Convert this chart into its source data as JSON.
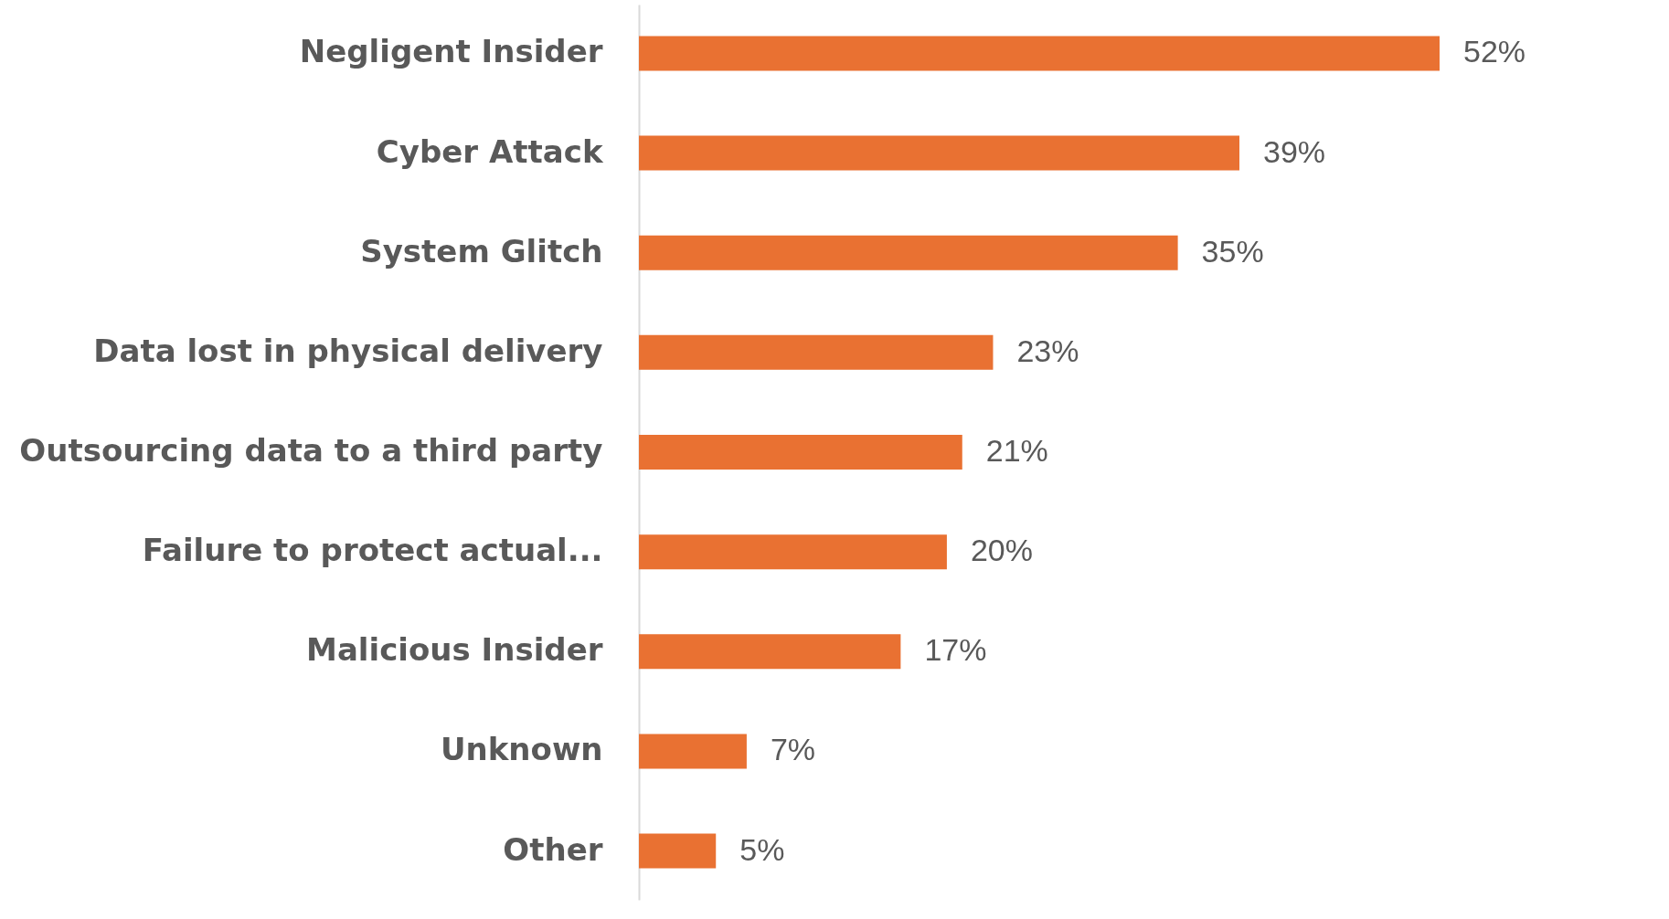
{
  "chart_data": {
    "type": "bar",
    "orientation": "horizontal",
    "categories": [
      "Negligent Insider",
      "Cyber Attack",
      "System Glitch",
      "Data lost in physical delivery",
      "Outsourcing data to a third party",
      "Failure to protect actual...",
      "Malicious Insider",
      "Unknown",
      "Other"
    ],
    "values": [
      52,
      39,
      35,
      23,
      21,
      20,
      17,
      7,
      5
    ],
    "value_labels": [
      "52%",
      "39%",
      "35%",
      "23%",
      "21%",
      "20%",
      "17%",
      "7%",
      "5%"
    ],
    "color": "#e97132",
    "grid": false
  }
}
